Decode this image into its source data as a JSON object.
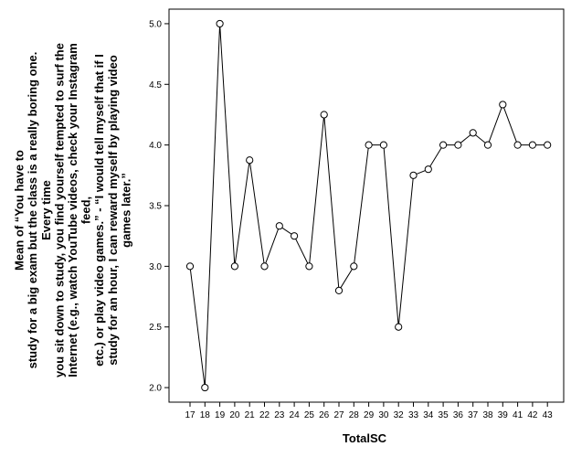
{
  "chart_data": {
    "type": "line",
    "xlabel": "TotalSC",
    "ylabel_lines": [
      "Mean of “You have to",
      "study for a big exam but the class is a really boring one.",
      "Every time",
      "you sit down to study, you find yourself tempted to surf the",
      "Internet (e.g., watch YouTube videos, check your Instagram",
      "feed,",
      "etc.) or play video games.” - “I would tell myself that if I",
      "study for an hour, I can reward myself by playing video",
      "games later.”"
    ],
    "categories": [
      "17",
      "18",
      "19",
      "20",
      "21",
      "22",
      "23",
      "24",
      "25",
      "26",
      "27",
      "28",
      "29",
      "30",
      "32",
      "33",
      "34",
      "35",
      "36",
      "37",
      "38",
      "39",
      "41",
      "42",
      "43"
    ],
    "values": [
      3.0,
      2.0,
      5.0,
      3.0,
      3.875,
      3.0,
      3.333,
      3.25,
      3.0,
      4.25,
      2.8,
      3.0,
      4.0,
      4.0,
      2.5,
      3.75,
      3.8,
      4.0,
      4.0,
      4.1,
      4.0,
      4.333,
      4.0,
      4.0,
      4.0
    ],
    "yticks": [
      "2.0",
      "2.5",
      "3.0",
      "3.5",
      "4.0",
      "4.5",
      "5.0"
    ],
    "ylim": [
      1.88,
      5.12
    ],
    "marker": "open-circle",
    "line_color": "#000000",
    "grid": false
  }
}
